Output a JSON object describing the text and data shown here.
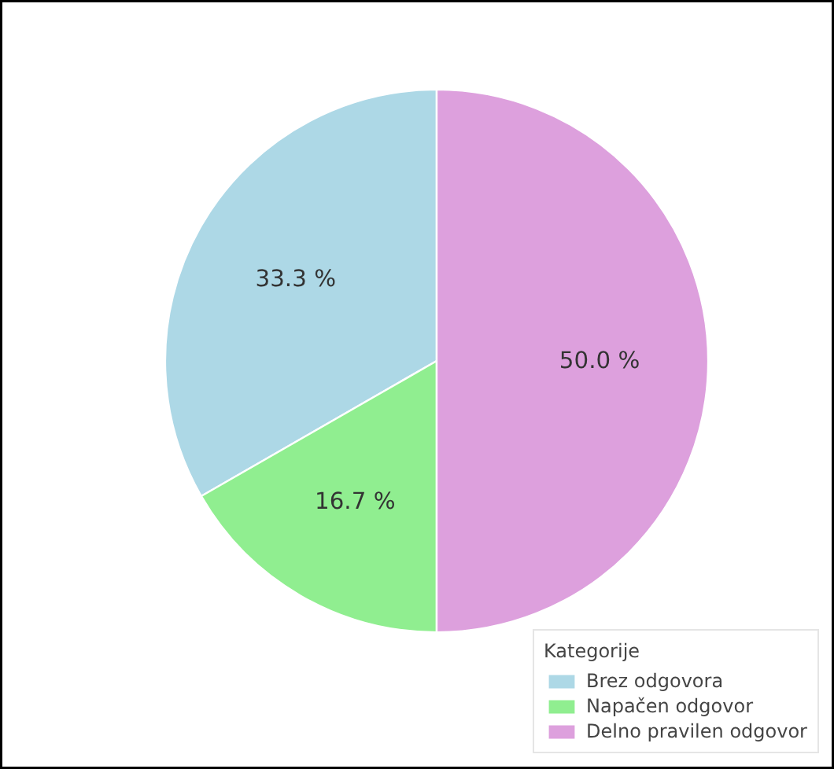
{
  "chart_data": {
    "type": "pie",
    "legend_title": "Kategorije",
    "legend": "bottom right",
    "categories": [
      "Brez odgovora",
      "Napačen odgovor",
      "Delno pravilen odgovor"
    ],
    "values": [
      33.3,
      16.7,
      50.0
    ],
    "colors": [
      "#add8e6",
      "#90ee90",
      "#dda0dd"
    ],
    "value_labels": [
      "33.3 %",
      "16.7 %",
      "50.0 %"
    ]
  }
}
